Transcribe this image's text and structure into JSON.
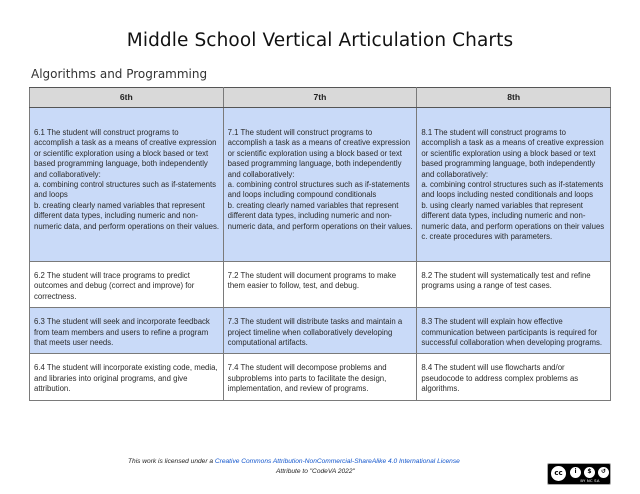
{
  "title": "Middle School Vertical Articulation Charts",
  "section_title": "Algorithms and Programming",
  "table": {
    "headers": [
      "6th",
      "7th",
      "8th"
    ],
    "rows": [
      {
        "highlight": true,
        "cells": [
          "6.1 The student will construct programs to accomplish a task as a means of creative expression or scientific exploration using a block based or text based programming language, both independently and collaboratively:\na. combining control structures such as if-statements and loops\nb. creating clearly named variables that represent different data types, including numeric and non-numeric data, and perform operations on their values.",
          "7.1 The student will construct programs to accomplish a task as a means of creative expression or scientific exploration using a block based or text based programming language, both independently and collaboratively:\na. combining control structures such as if-statements and loops including compound conditionals\nb. creating clearly named variables that represent different data types, including numeric and non-numeric data, and perform operations on their values.",
          "8.1 The student will construct programs to accomplish a task as a means of creative expression or scientific exploration using a block based or text based programming language, both independently and collaboratively:\na. combining control structures such as if-statements and loops including nested conditionals and loops\nb. using clearly named variables that represent different data types, including numeric and non-numeric data, and perform operations on their values\nc. create procedures with parameters."
        ]
      },
      {
        "highlight": false,
        "cells": [
          "6.2 The student will trace programs to predict outcomes and debug (correct and improve) for correctness.",
          "7.2 The student will document programs to make them easier to follow, test, and debug.",
          "8.2 The student will systematically test and refine programs using a range of test cases."
        ]
      },
      {
        "highlight": true,
        "cells": [
          "6.3 The student will seek and incorporate feedback from team members and users to refine a program that meets user needs.",
          "7.3 The student will distribute tasks and maintain a project timeline when collaboratively developing computational artifacts.",
          "8.3 The student will explain how effective communication between participants is required for successful collaboration when developing programs."
        ]
      },
      {
        "highlight": false,
        "cells": [
          "6.4 The student will incorporate existing code, media, and libraries into original programs, and give attribution.",
          "7.4 The student will decompose problems and subproblems into parts to facilitate the design, implementation, and review of programs.",
          "8.4 The student will use flowcharts and/or pseudocode to address complex problems as algorithms."
        ]
      }
    ]
  },
  "footer": {
    "license_prefix": "This work is licensed under a ",
    "license_link": "Creative Commons Attribution-NonCommercial-ShareAlike 4.0 International License",
    "attribution": "Attribute to \"CodeVA 2022\"",
    "badge": {
      "main": "cc",
      "by": "i",
      "nc": "$",
      "sa": "↺",
      "labels": "BY  NC  SA"
    }
  },
  "colors": {
    "highlight_row": "#c9daf8",
    "header_row": "#d9d9d9",
    "link": "#1155cc"
  }
}
